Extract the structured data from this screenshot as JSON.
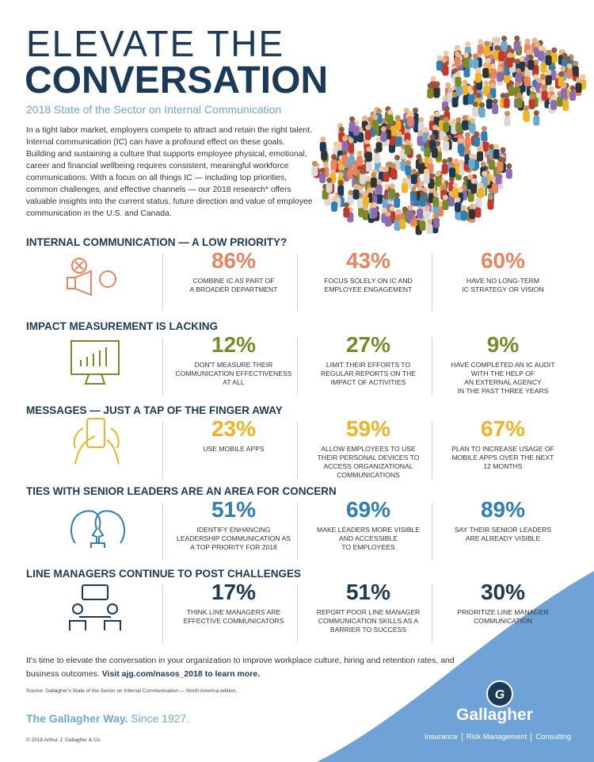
{
  "header": {
    "title_line1": "ELEVATE THE",
    "title_line2": "CONVERSATION",
    "subtitle": "2018 State of the Sector on Internal Communication",
    "intro": "In a tight labor market, employers compete to attract and retain the right talent. Internal communication (IC) can have a profound effect on these goals. Building and sustaining a culture that supports employee physical, emotional, career and financial wellbeing requires consistent, meaningful workforce communications. With a focus on all things IC — including top priorities, common challenges, and effective channels — our 2018 research* offers valuable insights into the current status, future direction and value of employee communication in the U.S. and Canada."
  },
  "sections": [
    {
      "heading": "INTERNAL COMMUNICATION — A LOW PRIORITY?",
      "stats": [
        {
          "value": "86%",
          "label": "COMBINE IC AS PART OF\nA BROADER DEPARTMENT"
        },
        {
          "value": "43%",
          "label": "FOCUS SOLELY ON IC AND\nEMPLOYEE ENGAGEMENT"
        },
        {
          "value": "60%",
          "label": "HAVE NO LONG-TERM\nIC STRATEGY OR VISION"
        }
      ]
    },
    {
      "heading": "IMPACT MEASUREMENT IS LACKING",
      "stats": [
        {
          "value": "12%",
          "label": "DON'T MEASURE THEIR\nCOMMUNICATION EFFECTIVENESS\nAT ALL"
        },
        {
          "value": "27%",
          "label": "LIMIT THEIR EFFORTS TO\nREGULAR REPORTS ON THE\nIMPACT OF ACTIVITIES"
        },
        {
          "value": "9%",
          "label": "HAVE COMPLETED AN IC AUDIT\nWITH THE HELP OF\nAN EXTERNAL AGENCY\nIN THE PAST THREE YEARS"
        }
      ]
    },
    {
      "heading": "MESSAGES — JUST A TAP OF THE FINGER AWAY",
      "stats": [
        {
          "value": "23%",
          "label": "USE MOBILE APPS"
        },
        {
          "value": "59%",
          "label": "ALLOW EMPLOYEES TO USE\nTHEIR PERSONAL DEVICES TO\nACCESS ORGANIZATIONAL\nCOMMUNICATIONS"
        },
        {
          "value": "67%",
          "label": "PLAN TO INCREASE USAGE OF\nMOBILE APPS OVER THE NEXT\n12 MONTHS"
        }
      ]
    },
    {
      "heading": "TIES WITH SENIOR LEADERS ARE AN AREA FOR CONCERN",
      "stats": [
        {
          "value": "51%",
          "label": "IDENTIFY ENHANCING\nLEADERSHIP COMMUNICATION AS\nA TOP PRIORITY FOR 2018"
        },
        {
          "value": "69%",
          "label": "MAKE LEADERS MORE VISIBLE\nAND ACCESSIBLE\nTO EMPLOYEES"
        },
        {
          "value": "89%",
          "label": "SAY THEIR SENIOR LEADERS\nARE ALREADY VISIBLE"
        }
      ]
    },
    {
      "heading": "LINE MANAGERS CONTINUE TO POST CHALLENGES",
      "stats": [
        {
          "value": "17%",
          "label": "THINK LINE MANAGERS ARE\nEFFECTIVE COMMUNICATORS"
        },
        {
          "value": "51%",
          "label": "REPORT POOR LINE MANAGER\nCOMMUNICATION SKILLS AS A\nBARRIER TO SUCCESS"
        },
        {
          "value": "30%",
          "label": "PRIORITIZE LINE MANAGER\nCOMMUNICATION"
        }
      ]
    }
  ],
  "footer": {
    "cta": "It's time to elevate the conversation in your organization to improve workplace culture, hiring and retention rates, and business outcomes.",
    "cta_link": "Visit ajg.com/nasos_2018 to learn more.",
    "source": "Source: Gallagher's State of the Sector on Internal Communication — North America edition.",
    "tagline": "The Gallagher Way.",
    "tagline_since": "Since 1927.",
    "copyright": "© 2018 Arthur J. Gallagher & Co.",
    "logo": "Gallagher",
    "services": [
      "Insurance",
      "Risk Management",
      "Consulting"
    ]
  }
}
